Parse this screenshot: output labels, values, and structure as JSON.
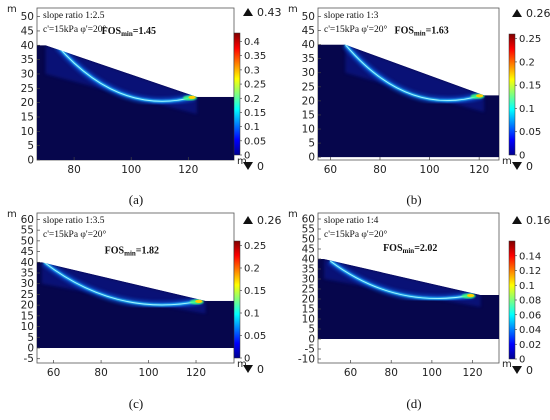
{
  "panels": [
    {
      "caption": "(a)",
      "slope_ratio_text": "slope ratio 1:2.5",
      "strength_text": "c'=15kPa  φ'=20°",
      "fos_prefix": "FOS",
      "fos_sub": "min",
      "fos_value": "=1.45",
      "unit_y": "m",
      "unit_x": "m",
      "x_ticks": [
        80,
        100,
        120
      ],
      "x_range": [
        67,
        136
      ],
      "y_ticks": [
        0,
        5,
        10,
        15,
        20,
        25,
        30,
        35,
        40,
        45,
        50
      ],
      "y_range": [
        0,
        53
      ],
      "colorbar_max": "0.43",
      "colorbar_min": "0",
      "colorbar_ticks": [
        "0.4",
        "0.35",
        "0.3",
        "0.25",
        "0.2",
        "0.15",
        "0.1",
        "0.05",
        "0"
      ],
      "colorbar_tick_values": [
        0.4,
        0.35,
        0.3,
        0.25,
        0.2,
        0.15,
        0.1,
        0.05,
        0
      ],
      "colorbar_range": [
        0,
        0.43
      ],
      "slope": {
        "crest_x": 70,
        "toe_x": 123,
        "top_y": 40,
        "toe_y": 22
      },
      "slip_surface": {
        "x_exit": 122,
        "y_exit": 22,
        "x_entry": 74,
        "y_entry": 40,
        "depth": 16
      }
    },
    {
      "caption": "(b)",
      "slope_ratio_text": "slope ratio 1:3",
      "strength_text": "c'=15kPa  φ'=20°",
      "fos_prefix": "FOS",
      "fos_sub": "min",
      "fos_value": "=1.63",
      "unit_y": "m",
      "unit_x": "m",
      "x_ticks": [
        60,
        80,
        100,
        120
      ],
      "x_range": [
        55,
        128
      ],
      "y_ticks": [
        0,
        5,
        10,
        15,
        20,
        25,
        30,
        35,
        40,
        45,
        50
      ],
      "y_range": [
        -1,
        53
      ],
      "colorbar_max": "0.26",
      "colorbar_min": "0",
      "colorbar_ticks": [
        "0.25",
        "0.2",
        "0.15",
        "0.1",
        "0.05",
        "0"
      ],
      "colorbar_tick_values": [
        0.25,
        0.2,
        0.15,
        0.1,
        0.05,
        0
      ],
      "colorbar_range": [
        0,
        0.26
      ],
      "slope": {
        "crest_x": 66,
        "toe_x": 122,
        "top_y": 40,
        "toe_y": 22
      },
      "slip_surface": {
        "x_exit": 121,
        "y_exit": 22,
        "x_entry": 66,
        "y_entry": 40,
        "depth": 17
      }
    },
    {
      "caption": "(c)",
      "slope_ratio_text": "slope ratio 1:3.5",
      "strength_text": "c'=15kPa  φ'=20°",
      "fos_prefix": "FOS",
      "fos_sub": "min",
      "fos_value": "=1.82",
      "unit_y": "m",
      "unit_x": "m",
      "x_ticks": [
        60,
        80,
        100,
        120
      ],
      "x_range": [
        53,
        136
      ],
      "y_ticks": [
        -5,
        0,
        5,
        10,
        15,
        20,
        25,
        30,
        35,
        40,
        45,
        50,
        55,
        60
      ],
      "y_range": [
        -7,
        63
      ],
      "colorbar_max": "0.26",
      "colorbar_min": "0",
      "colorbar_ticks": [
        "0.25",
        "0.2",
        "0.15",
        "0.1",
        "0.05",
        "0"
      ],
      "colorbar_tick_values": [
        0.25,
        0.2,
        0.15,
        0.1,
        0.05,
        0
      ],
      "colorbar_range": [
        0,
        0.26
      ],
      "slope": {
        "crest_x": 55,
        "toe_x": 124,
        "top_y": 40,
        "toe_y": 22
      },
      "slip_surface": {
        "x_exit": 122,
        "y_exit": 22,
        "x_entry": 56,
        "y_entry": 40,
        "depth": 17
      }
    },
    {
      "caption": "(d)",
      "slope_ratio_text": "slope ratio 1:4",
      "strength_text": "c'=15kPa  φ'=20°",
      "fos_prefix": "FOS",
      "fos_sub": "min",
      "fos_value": "=2.02",
      "unit_y": "m",
      "unit_x": "m",
      "x_ticks": [
        60,
        80,
        100,
        120
      ],
      "x_range": [
        44,
        133
      ],
      "y_ticks": [
        -10,
        -5,
        0,
        5,
        10,
        15,
        20,
        25,
        30,
        35,
        40,
        45,
        50,
        55,
        60
      ],
      "y_range": [
        -12,
        63
      ],
      "colorbar_max": "0.16",
      "colorbar_min": "0",
      "colorbar_ticks": [
        "0.14",
        "0.12",
        "0.1",
        "0.08",
        "0.06",
        "0.04",
        "0.02",
        "0"
      ],
      "colorbar_tick_values": [
        0.14,
        0.12,
        0.1,
        0.08,
        0.06,
        0.04,
        0.02,
        0
      ],
      "colorbar_range": [
        0,
        0.16
      ],
      "slope": {
        "crest_x": 47,
        "toe_x": 124,
        "top_y": 40,
        "toe_y": 22
      },
      "slip_surface": {
        "x_exit": 120,
        "y_exit": 22,
        "x_entry": 50,
        "y_entry": 39,
        "depth": 16
      }
    }
  ],
  "colors": {
    "domain_base": "#06064c",
    "domain_light": "#0a1f9a",
    "colormap": [
      "#00008f",
      "#0000ff",
      "#007fff",
      "#00ffff",
      "#7fff7f",
      "#ffff00",
      "#ff7f00",
      "#ff0000",
      "#7f0000"
    ]
  }
}
